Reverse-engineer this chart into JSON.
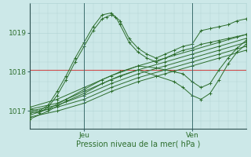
{
  "title": "",
  "xlabel": "Pression niveau de la mer( hPa )",
  "ylabel": "",
  "bg_color": "#cce8e8",
  "plot_bg_color": "#cce8e8",
  "grid_color": "#b0d4d4",
  "line_color": "#2d6e2d",
  "text_color": "#2d6e2d",
  "tick_label_color": "#2d6e2d",
  "xlabel_color": "#2d6e2d",
  "ylim": [
    1016.55,
    1019.75
  ],
  "xlim": [
    0,
    48
  ],
  "yticks": [
    1017,
    1018,
    1019
  ],
  "xtick_positions": [
    12,
    36
  ],
  "xtick_labels": [
    "Jeu",
    "Ven"
  ],
  "red_line_y": 1018.05,
  "series": [
    {
      "x": [
        0,
        2,
        4,
        6,
        8,
        10,
        12,
        14,
        16,
        18,
        20,
        22,
        24,
        26,
        28,
        30,
        32,
        34,
        36,
        38,
        40,
        42,
        44,
        46,
        48
      ],
      "y": [
        1017.05,
        1017.0,
        1017.15,
        1017.5,
        1017.9,
        1018.35,
        1018.75,
        1019.15,
        1019.45,
        1019.5,
        1019.3,
        1018.85,
        1018.6,
        1018.45,
        1018.35,
        1018.45,
        1018.55,
        1018.65,
        1018.7,
        1019.05,
        1019.1,
        1019.15,
        1019.2,
        1019.3,
        1019.35
      ]
    },
    {
      "x": [
        0,
        2,
        4,
        6,
        8,
        10,
        12,
        14,
        16,
        17,
        18,
        19,
        20,
        22,
        24,
        26,
        28,
        30,
        32,
        34,
        36,
        38,
        40,
        42,
        44,
        46,
        48
      ],
      "y": [
        1017.0,
        1016.95,
        1017.1,
        1017.4,
        1017.8,
        1018.25,
        1018.65,
        1019.05,
        1019.35,
        1019.4,
        1019.45,
        1019.4,
        1019.2,
        1018.75,
        1018.5,
        1018.35,
        1018.25,
        1018.35,
        1018.45,
        1018.55,
        1018.6,
        1018.7,
        1018.75,
        1018.8,
        1018.85,
        1018.9,
        1018.95
      ]
    },
    {
      "x": [
        0,
        6,
        12,
        18,
        24,
        30,
        36,
        42,
        48
      ],
      "y": [
        1017.1,
        1017.3,
        1017.6,
        1017.9,
        1018.15,
        1018.35,
        1018.55,
        1018.75,
        1018.95
      ]
    },
    {
      "x": [
        0,
        6,
        12,
        18,
        24,
        30,
        36,
        42,
        48
      ],
      "y": [
        1017.05,
        1017.2,
        1017.5,
        1017.8,
        1018.05,
        1018.25,
        1018.45,
        1018.65,
        1018.85
      ]
    },
    {
      "x": [
        0,
        6,
        12,
        18,
        24,
        30,
        36,
        42,
        48
      ],
      "y": [
        1017.0,
        1017.15,
        1017.4,
        1017.7,
        1017.95,
        1018.15,
        1018.35,
        1018.55,
        1018.75
      ]
    },
    {
      "x": [
        0,
        6,
        12,
        18,
        24,
        30,
        36,
        42,
        48
      ],
      "y": [
        1016.95,
        1017.1,
        1017.3,
        1017.6,
        1017.85,
        1018.05,
        1018.25,
        1018.45,
        1018.65
      ]
    },
    {
      "x": [
        0,
        6,
        12,
        18,
        24,
        30,
        36,
        42,
        48
      ],
      "y": [
        1016.85,
        1017.0,
        1017.2,
        1017.5,
        1017.75,
        1017.95,
        1018.15,
        1018.35,
        1018.55
      ]
    },
    {
      "x": [
        0,
        4,
        8,
        12,
        16,
        20,
        24,
        28,
        32,
        34,
        36,
        38,
        40,
        42,
        44,
        46,
        48
      ],
      "y": [
        1016.9,
        1017.05,
        1017.3,
        1017.55,
        1017.8,
        1018.0,
        1018.15,
        1018.1,
        1018.0,
        1017.95,
        1017.75,
        1017.6,
        1017.7,
        1018.05,
        1018.35,
        1018.6,
        1018.8
      ]
    },
    {
      "x": [
        0,
        4,
        8,
        12,
        16,
        20,
        24,
        28,
        32,
        34,
        36,
        38,
        40,
        42,
        44,
        46,
        48
      ],
      "y": [
        1016.8,
        1017.0,
        1017.25,
        1017.45,
        1017.7,
        1017.9,
        1018.05,
        1017.9,
        1017.75,
        1017.6,
        1017.4,
        1017.3,
        1017.45,
        1017.8,
        1018.2,
        1018.5,
        1018.7
      ]
    }
  ]
}
